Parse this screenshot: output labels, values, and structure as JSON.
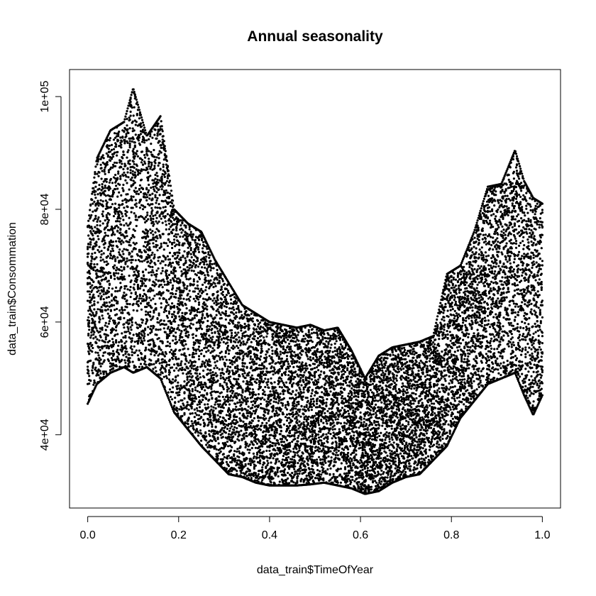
{
  "chart_data": {
    "type": "scatter",
    "title": "Annual seasonality",
    "xlabel": "data_train$TimeOfYear",
    "ylabel": "data_train$Consommation",
    "xlim": [
      -0.04,
      1.04
    ],
    "ylim": [
      27000,
      104800
    ],
    "x_ticks": [
      0.0,
      0.2,
      0.4,
      0.6,
      0.8,
      1.0
    ],
    "x_tick_labels": [
      "0.0",
      "0.2",
      "0.4",
      "0.6",
      "0.8",
      "1.0"
    ],
    "y_ticks": [
      40000,
      60000,
      80000,
      100000
    ],
    "y_tick_labels": [
      "4e+04",
      "6e+04",
      "8e+04",
      "1e+05"
    ],
    "marker_color": "#000000",
    "grid": false,
    "legend": "none",
    "series": [
      {
        "envelope": [
          {
            "x": 0.0,
            "low": 45500,
            "high": 77000
          },
          {
            "x": 0.02,
            "low": 49000,
            "high": 89000
          },
          {
            "x": 0.05,
            "low": 51000,
            "high": 94000
          },
          {
            "x": 0.08,
            "low": 52000,
            "high": 95500
          },
          {
            "x": 0.1,
            "low": 51000,
            "high": 101500
          },
          {
            "x": 0.13,
            "low": 52000,
            "high": 93000
          },
          {
            "x": 0.16,
            "low": 50000,
            "high": 96500
          },
          {
            "x": 0.19,
            "low": 44000,
            "high": 80000
          },
          {
            "x": 0.22,
            "low": 41000,
            "high": 77500
          },
          {
            "x": 0.25,
            "low": 38000,
            "high": 76000
          },
          {
            "x": 0.28,
            "low": 35500,
            "high": 71000
          },
          {
            "x": 0.31,
            "low": 33000,
            "high": 67000
          },
          {
            "x": 0.34,
            "low": 32500,
            "high": 63000
          },
          {
            "x": 0.37,
            "low": 31500,
            "high": 61500
          },
          {
            "x": 0.4,
            "low": 31000,
            "high": 60000
          },
          {
            "x": 0.43,
            "low": 31000,
            "high": 59500
          },
          {
            "x": 0.46,
            "low": 31000,
            "high": 59000
          },
          {
            "x": 0.49,
            "low": 31200,
            "high": 59500
          },
          {
            "x": 0.52,
            "low": 31500,
            "high": 58500
          },
          {
            "x": 0.55,
            "low": 31000,
            "high": 59000
          },
          {
            "x": 0.58,
            "low": 30500,
            "high": 55000
          },
          {
            "x": 0.61,
            "low": 29500,
            "high": 50000
          },
          {
            "x": 0.64,
            "low": 30000,
            "high": 54000
          },
          {
            "x": 0.67,
            "low": 31500,
            "high": 55500
          },
          {
            "x": 0.7,
            "low": 32500,
            "high": 56000
          },
          {
            "x": 0.73,
            "low": 33000,
            "high": 56500
          },
          {
            "x": 0.76,
            "low": 35500,
            "high": 57500
          },
          {
            "x": 0.79,
            "low": 38000,
            "high": 68500
          },
          {
            "x": 0.82,
            "low": 43000,
            "high": 70000
          },
          {
            "x": 0.85,
            "low": 46000,
            "high": 76000
          },
          {
            "x": 0.88,
            "low": 49000,
            "high": 84000
          },
          {
            "x": 0.91,
            "low": 50000,
            "high": 84500
          },
          {
            "x": 0.94,
            "low": 51000,
            "high": 90500
          },
          {
            "x": 0.96,
            "low": 47000,
            "high": 85000
          },
          {
            "x": 0.98,
            "low": 43500,
            "high": 82000
          },
          {
            "x": 1.0,
            "low": 47000,
            "high": 81000
          }
        ]
      }
    ]
  }
}
